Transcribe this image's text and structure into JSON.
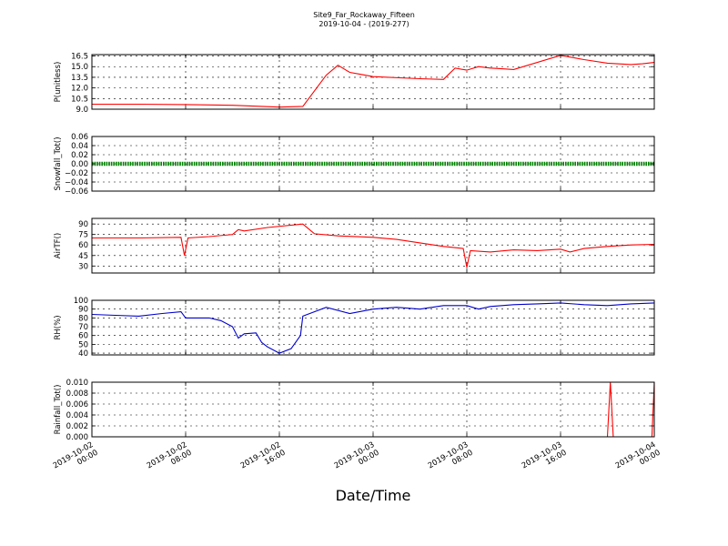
{
  "title_line1": "Site9_Far_Rockaway_Fifteen",
  "title_line2": "2019-10-04 - (2019-277)",
  "x_axis_label": "Date/Time",
  "chart_data": [
    {
      "type": "line",
      "ylabel": "P(unitless)",
      "ylim": [
        9.0,
        16.7
      ],
      "yticks": [
        "9.0",
        "10.5",
        "12.0",
        "13.5",
        "15.0",
        "16.5"
      ],
      "ytick_values": [
        9.0,
        10.5,
        12.0,
        13.5,
        15.0,
        16.5
      ],
      "color": "#ff0000",
      "grid": true,
      "x_hours": [
        0,
        4,
        8,
        12,
        16,
        18,
        20,
        21,
        22,
        23,
        24,
        28,
        30,
        31,
        32,
        33,
        34,
        35,
        36,
        40,
        42,
        44,
        46,
        47,
        48
      ],
      "values": [
        9.7,
        9.7,
        9.65,
        9.55,
        9.3,
        9.4,
        13.8,
        15.2,
        14.2,
        13.9,
        13.6,
        13.3,
        13.2,
        14.8,
        14.5,
        15.0,
        14.8,
        14.7,
        14.6,
        16.6,
        16.0,
        15.5,
        15.3,
        15.4,
        15.6
      ]
    },
    {
      "type": "scatter",
      "ylabel": "Snowfall_Tot()",
      "ylim": [
        -0.06,
        0.06
      ],
      "yticks": [
        "0.06",
        "0.04",
        "0.02",
        "0.00",
        "−0.02",
        "−0.04",
        "−0.06"
      ],
      "ytick_values": [
        0.06,
        0.04,
        0.02,
        0.0,
        -0.02,
        -0.04,
        -0.06
      ],
      "color": "#008000",
      "grid": true,
      "x_hours": [
        0,
        48
      ],
      "values": [
        0.0,
        0.0
      ]
    },
    {
      "type": "line",
      "ylabel": "AirTF()",
      "ylim": [
        20,
        98
      ],
      "yticks": [
        "90",
        "75",
        "60",
        "45",
        "30"
      ],
      "ytick_values": [
        90,
        75,
        60,
        45,
        30
      ],
      "color": "#ff0000",
      "grid": true,
      "x_hours": [
        0,
        4,
        7.6,
        7.9,
        8.2,
        10,
        12,
        12.5,
        13,
        15,
        18,
        19,
        21,
        24,
        26,
        28,
        30,
        31.7,
        32,
        32.3,
        34,
        36,
        38,
        40,
        40.8,
        42,
        44,
        46,
        48
      ],
      "values": [
        70,
        70,
        71,
        45,
        70,
        72,
        75,
        82,
        80,
        85,
        90,
        76,
        73,
        71,
        68,
        63,
        58,
        55,
        28,
        52,
        50,
        53,
        52,
        54,
        50,
        55,
        58,
        60,
        61
      ]
    },
    {
      "type": "line",
      "ylabel": "RH(%)",
      "ylim": [
        38,
        100
      ],
      "yticks": [
        "100",
        "90",
        "80",
        "70",
        "60",
        "50",
        "40"
      ],
      "ytick_values": [
        100,
        90,
        80,
        70,
        60,
        50,
        40
      ],
      "color": "#0000cc",
      "grid": true,
      "x_hours": [
        0,
        2,
        4,
        6,
        7.6,
        8,
        10,
        11,
        12,
        12.5,
        13,
        14,
        14.5,
        15,
        16,
        17,
        17.8,
        18,
        20,
        22,
        24,
        26,
        28,
        30,
        32,
        33,
        34,
        36,
        38,
        40,
        42,
        44,
        46,
        48
      ],
      "values": [
        84,
        83,
        82,
        85,
        87,
        80,
        80,
        77,
        70,
        57,
        62,
        63,
        52,
        47,
        40,
        45,
        60,
        82,
        92,
        85,
        90,
        92,
        90,
        94,
        94,
        90,
        93,
        95,
        96,
        97,
        95,
        94,
        96,
        97
      ]
    },
    {
      "type": "line",
      "ylabel": "Rainfall_Tot()",
      "ylim": [
        0.0,
        0.01
      ],
      "yticks": [
        "0.010",
        "0.008",
        "0.006",
        "0.004",
        "0.002",
        "0.000"
      ],
      "ytick_values": [
        0.01,
        0.008,
        0.006,
        0.004,
        0.002,
        0.0
      ],
      "color": "#ff0000",
      "grid": true,
      "x_hours": [
        0,
        44,
        44.25,
        44.5,
        45,
        45.5,
        46,
        47.5,
        47.8,
        48
      ],
      "values": [
        0.0,
        0.0,
        0.01,
        0.0,
        0.0,
        0.0,
        0.0,
        0.0,
        0.0,
        0.01
      ]
    }
  ],
  "x_tick_values": [
    0,
    8,
    16,
    24,
    32,
    40,
    48
  ],
  "x_ticks": [
    {
      "line1": "2019-10-02",
      "line2": "00:00"
    },
    {
      "line1": "2019-10-02",
      "line2": "08:00"
    },
    {
      "line1": "2019-10-02",
      "line2": "16:00"
    },
    {
      "line1": "2019-10-03",
      "line2": "00:00"
    },
    {
      "line1": "2019-10-03",
      "line2": "08:00"
    },
    {
      "line1": "2019-10-03",
      "line2": "16:00"
    },
    {
      "line1": "2019-10-04",
      "line2": "00:00"
    }
  ]
}
